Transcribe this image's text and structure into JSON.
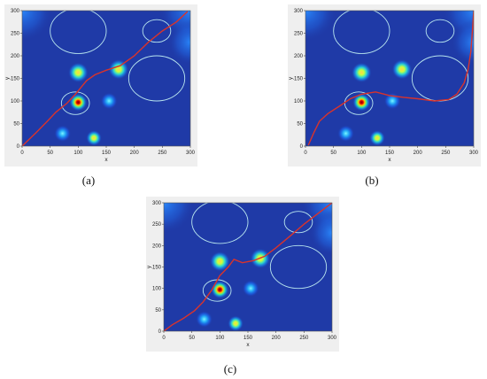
{
  "panels": [
    {
      "id": "a",
      "caption": "(a)",
      "x_label": "x",
      "y_label": "y",
      "x_ticks": [
        "0",
        "50",
        "100",
        "150",
        "200",
        "250",
        "300"
      ],
      "y_ticks": [
        "0",
        "50",
        "100",
        "150",
        "200",
        "250",
        "300"
      ],
      "path": [
        [
          0,
          0
        ],
        [
          10,
          12
        ],
        [
          25,
          30
        ],
        [
          45,
          55
        ],
        [
          60,
          75
        ],
        [
          80,
          95
        ],
        [
          95,
          115
        ],
        [
          105,
          130
        ],
        [
          115,
          145
        ],
        [
          130,
          158
        ],
        [
          150,
          168
        ],
        [
          175,
          178
        ],
        [
          200,
          200
        ],
        [
          225,
          230
        ],
        [
          250,
          255
        ],
        [
          275,
          275
        ],
        [
          295,
          298
        ]
      ]
    },
    {
      "id": "b",
      "caption": "(b)",
      "x_label": "x",
      "y_label": "y",
      "x_ticks": [
        "0",
        "50",
        "100",
        "150",
        "200",
        "250",
        "300"
      ],
      "y_ticks": [
        "0",
        "50",
        "100",
        "150",
        "200",
        "250",
        "300"
      ],
      "path": [
        [
          5,
          2
        ],
        [
          15,
          30
        ],
        [
          25,
          55
        ],
        [
          40,
          72
        ],
        [
          60,
          88
        ],
        [
          80,
          105
        ],
        [
          100,
          115
        ],
        [
          125,
          120
        ],
        [
          150,
          112
        ],
        [
          175,
          108
        ],
        [
          200,
          105
        ],
        [
          230,
          100
        ],
        [
          255,
          103
        ],
        [
          270,
          115
        ],
        [
          283,
          140
        ],
        [
          290,
          170
        ],
        [
          295,
          210
        ],
        [
          298,
          260
        ],
        [
          300,
          300
        ]
      ]
    },
    {
      "id": "c",
      "caption": "(c)",
      "x_label": "x",
      "y_label": "y",
      "x_ticks": [
        "0",
        "50",
        "100",
        "150",
        "200",
        "250",
        "300"
      ],
      "y_ticks": [
        "0",
        "50",
        "100",
        "150",
        "200",
        "250",
        "300"
      ],
      "path": [
        [
          0,
          0
        ],
        [
          15,
          15
        ],
        [
          35,
          30
        ],
        [
          55,
          48
        ],
        [
          70,
          68
        ],
        [
          85,
          95
        ],
        [
          100,
          130
        ],
        [
          115,
          150
        ],
        [
          125,
          168
        ],
        [
          140,
          160
        ],
        [
          160,
          165
        ],
        [
          180,
          175
        ],
        [
          200,
          195
        ],
        [
          225,
          222
        ],
        [
          250,
          250
        ],
        [
          275,
          275
        ],
        [
          300,
          300
        ]
      ]
    }
  ],
  "obstacles": {
    "circles": [
      {
        "cx": 100,
        "cy": 255,
        "r": 50
      },
      {
        "cx": 240,
        "cy": 255,
        "r": 25
      },
      {
        "cx": 240,
        "cy": 150,
        "r": 50
      },
      {
        "cx": 95,
        "cy": 95,
        "r": 25
      }
    ],
    "blobs": [
      {
        "cx": 100,
        "cy": 163,
        "r": 18,
        "peak": 0.75
      },
      {
        "cx": 172,
        "cy": 170,
        "r": 18,
        "peak": 0.75
      },
      {
        "cx": 100,
        "cy": 97,
        "r": 16,
        "peak": 1.0
      },
      {
        "cx": 155,
        "cy": 100,
        "r": 15,
        "peak": 0.6
      },
      {
        "cx": 72,
        "cy": 28,
        "r": 15,
        "peak": 0.65
      },
      {
        "cx": 128,
        "cy": 18,
        "r": 14,
        "peak": 0.7
      }
    ],
    "corner_glows": [
      {
        "cx": 0,
        "cy": 300,
        "r": 55
      },
      {
        "cx": 300,
        "cy": 300,
        "r": 55
      },
      {
        "cx": 300,
        "cy": 230,
        "r": 40
      }
    ]
  },
  "colors": {
    "background": "#1f3aa7",
    "path": "#d9332b",
    "circle": "#b9e6ef",
    "panel": "#efefef"
  }
}
